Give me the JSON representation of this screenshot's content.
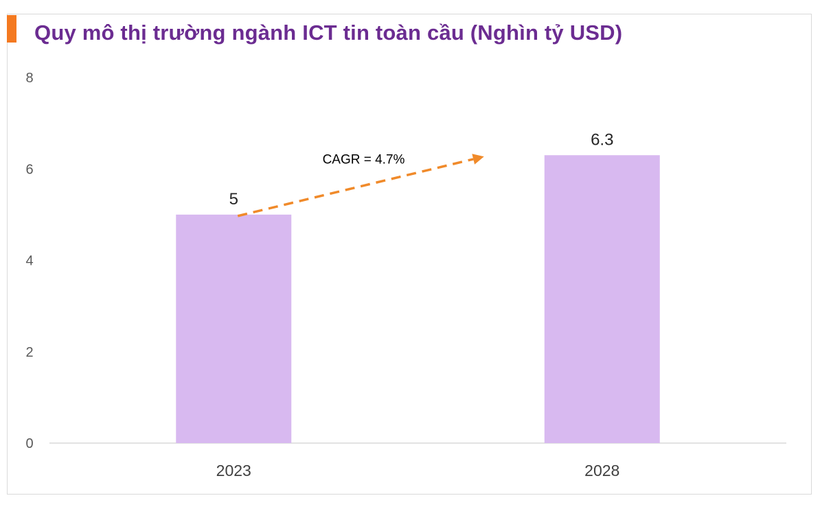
{
  "chart_data": {
    "type": "bar",
    "title": "Quy mô thị trường ngành ICT tin toàn cầu (Nghìn tỷ USD)",
    "categories": [
      "2023",
      "2028"
    ],
    "values": [
      5,
      6.3
    ],
    "data_labels": [
      "5",
      "6.3"
    ],
    "ylim": [
      0,
      8
    ],
    "yticks": [
      "0",
      "2",
      "4",
      "6",
      "8"
    ],
    "grid": false,
    "annotation": {
      "text": "CAGR = 4.7%",
      "from_category": "2023",
      "to_category": "2028",
      "style": "dashed-arrow"
    },
    "colors": {
      "bar": "#d8b9f0",
      "arrow": "#f08a2a",
      "title": "#6b2c91",
      "accent": "#f47920"
    }
  }
}
